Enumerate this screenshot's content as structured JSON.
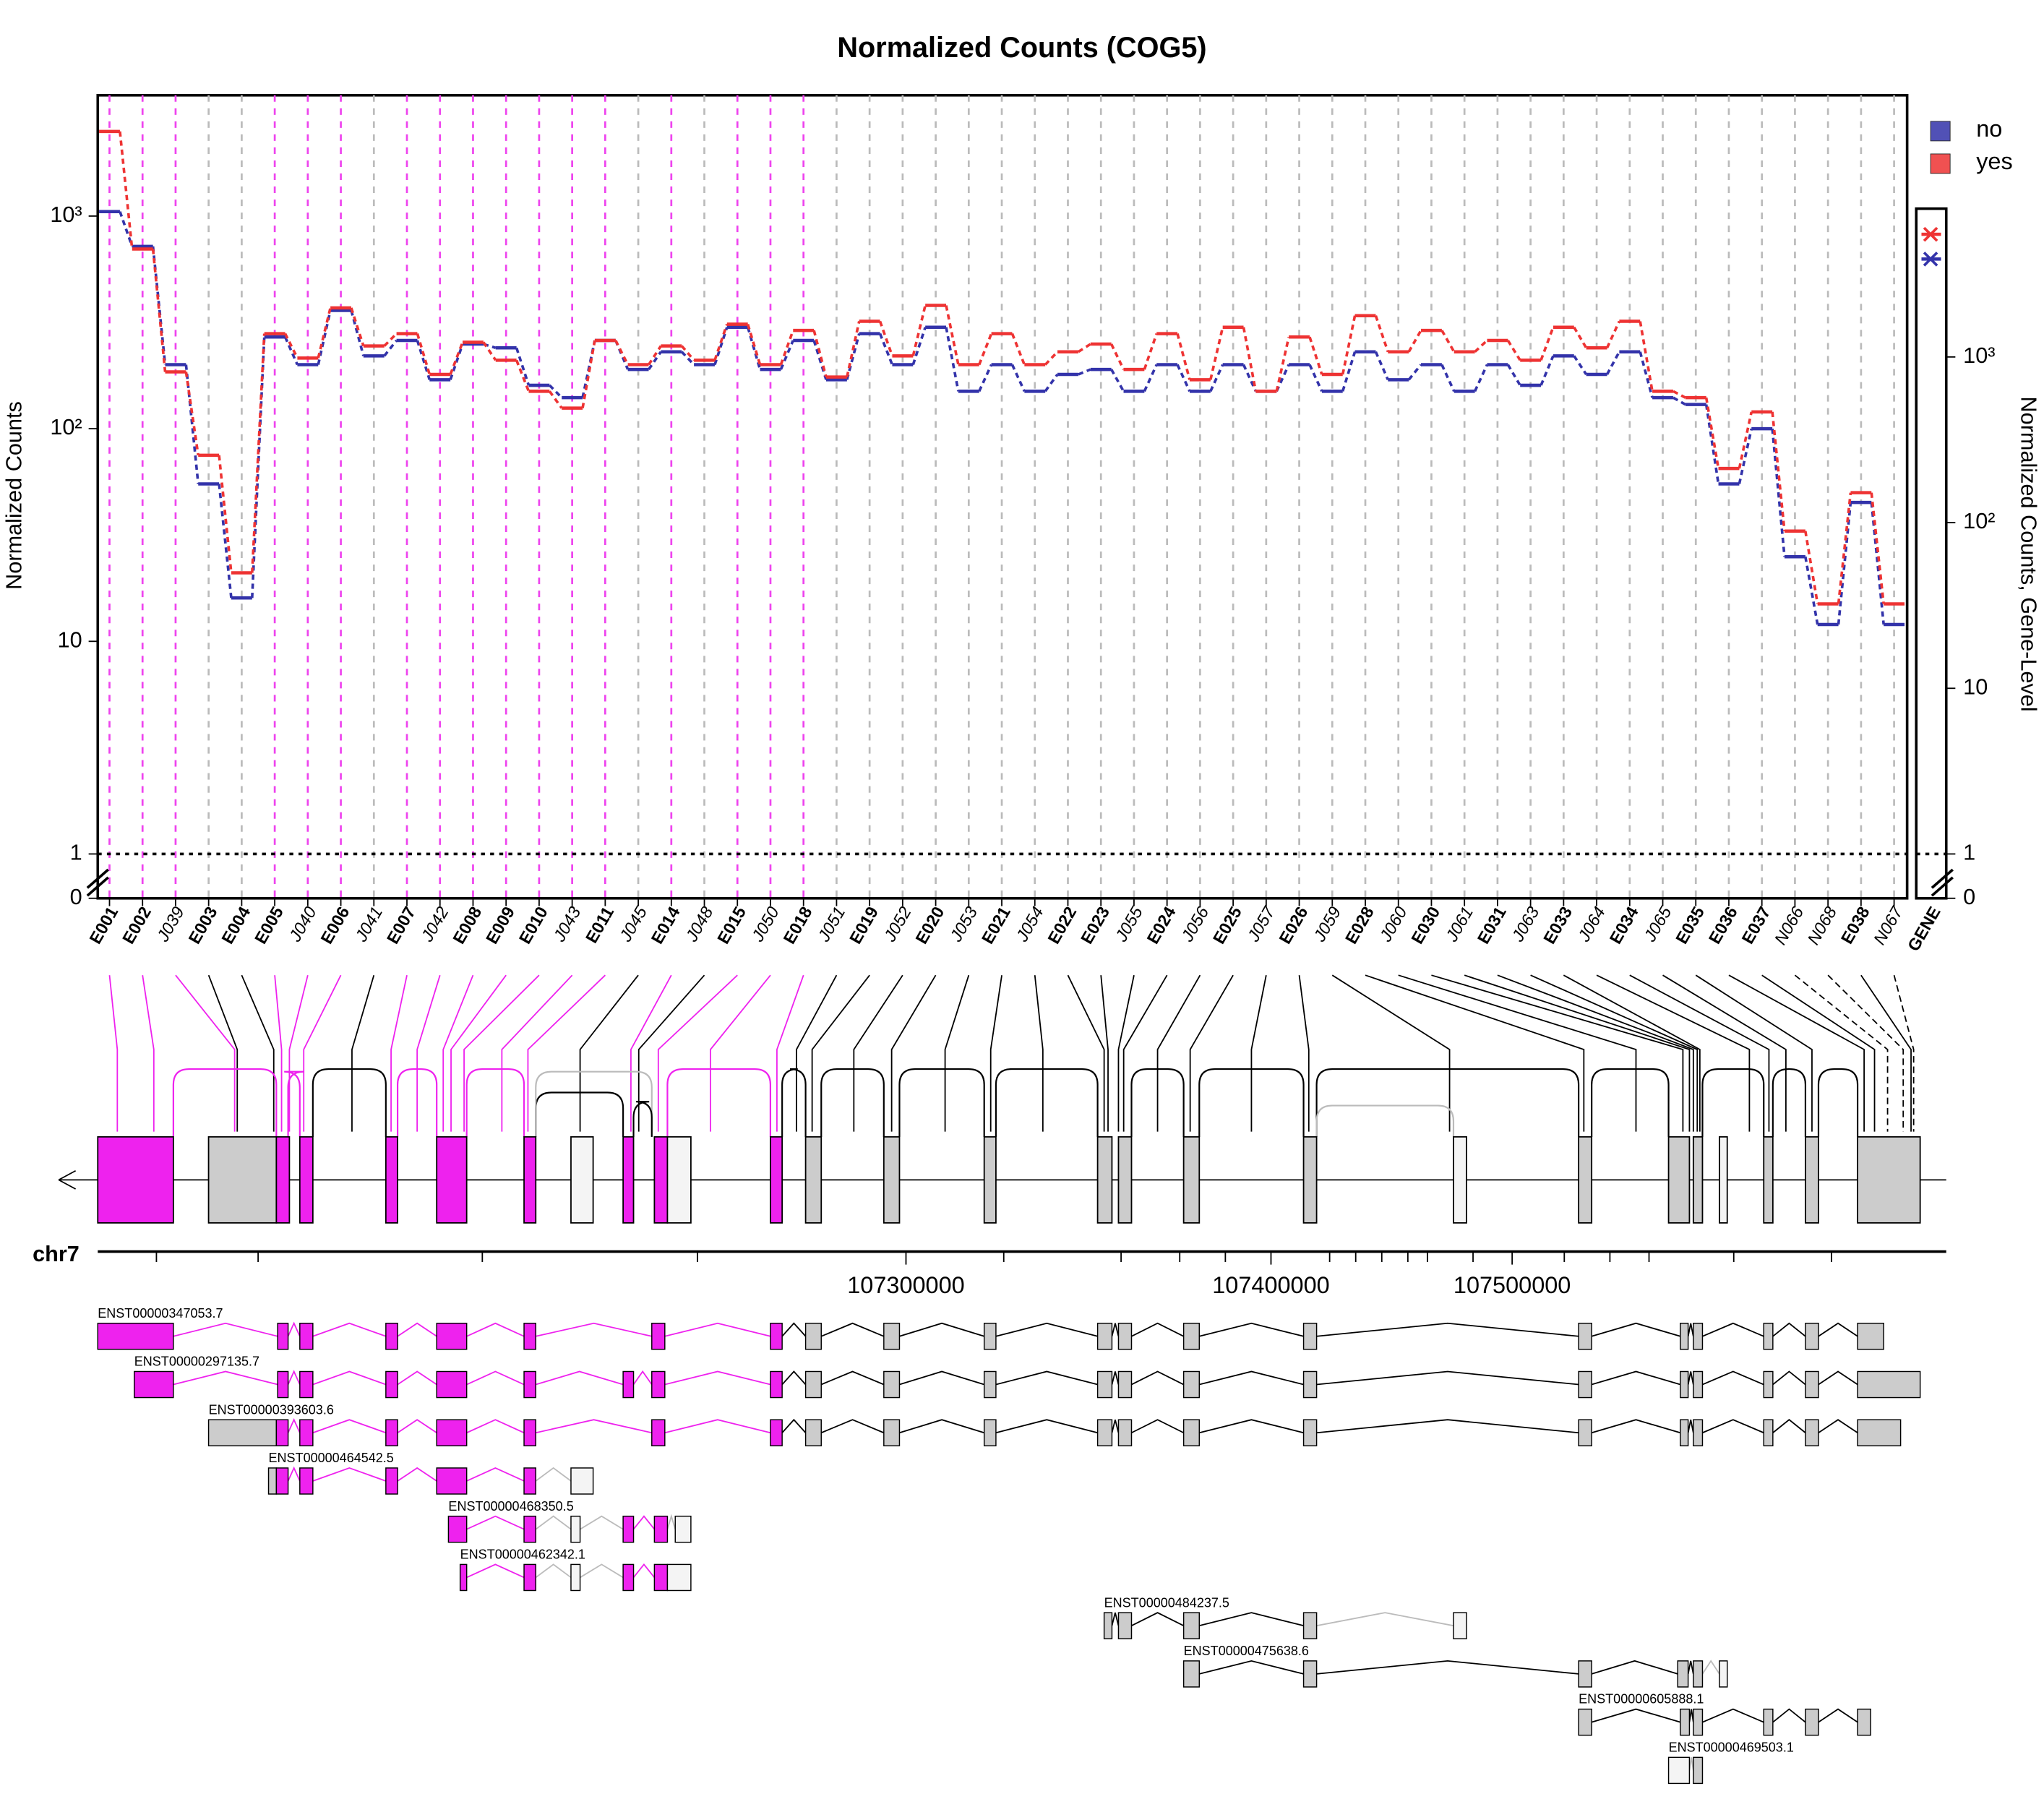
{
  "chart_data": {
    "type": "line",
    "title": "Normalized Counts (COG5)",
    "y_label": "Normalized Counts",
    "y2_label": "Normalized Counts, Gene-Level",
    "log_y": true,
    "categories": [
      "E001",
      "E002",
      "J039",
      "E003",
      "E004",
      "E005",
      "J040",
      "E006",
      "J041",
      "E007",
      "J042",
      "E008",
      "E009",
      "E010",
      "J043",
      "E011",
      "J045",
      "E014",
      "J048",
      "E015",
      "J050",
      "E018",
      "J051",
      "E019",
      "J052",
      "E020",
      "J053",
      "E021",
      "J054",
      "E022",
      "E023",
      "J055",
      "E024",
      "J056",
      "E025",
      "J057",
      "E026",
      "J059",
      "E028",
      "J060",
      "E030",
      "J061",
      "E031",
      "J063",
      "E033",
      "J064",
      "E034",
      "J065",
      "E035",
      "E036",
      "E037",
      "N066",
      "N068",
      "E038",
      "N067"
    ],
    "category_colors": [
      "#ee44ee",
      "#ee44ee",
      "#ee44ee",
      "#bbbbbb",
      "#bbbbbb",
      "#ee44ee",
      "#ee44ee",
      "#ee44ee",
      "#bbbbbb",
      "#ee44ee",
      "#ee44ee",
      "#ee44ee",
      "#ee44ee",
      "#ee44ee",
      "#ee44ee",
      "#ee44ee",
      "#bbbbbb",
      "#ee44ee",
      "#bbbbbb",
      "#ee44ee",
      "#ee44ee",
      "#ee44ee",
      "#bbbbbb",
      "#bbbbbb",
      "#bbbbbb",
      "#bbbbbb",
      "#bbbbbb",
      "#bbbbbb",
      "#bbbbbb",
      "#bbbbbb",
      "#bbbbbb",
      "#bbbbbb",
      "#bbbbbb",
      "#bbbbbb",
      "#bbbbbb",
      "#bbbbbb",
      "#bbbbbb",
      "#bbbbbb",
      "#bbbbbb",
      "#bbbbbb",
      "#bbbbbb",
      "#bbbbbb",
      "#bbbbbb",
      "#bbbbbb",
      "#bbbbbb",
      "#bbbbbb",
      "#bbbbbb",
      "#bbbbbb",
      "#bbbbbb",
      "#bbbbbb",
      "#bbbbbb",
      "#bbbbbb",
      "#bbbbbb",
      "#bbbbbb",
      "#bbbbbb"
    ],
    "gene_label": "GENE",
    "series": [
      {
        "name": "no",
        "color": "#3333aa",
        "gene_value": 3900,
        "values": [
          1050,
          720,
          200,
          55,
          16,
          270,
          200,
          360,
          220,
          260,
          170,
          250,
          240,
          160,
          140,
          260,
          190,
          230,
          200,
          300,
          190,
          260,
          170,
          280,
          200,
          300,
          150,
          200,
          150,
          180,
          190,
          150,
          200,
          150,
          200,
          150,
          200,
          150,
          230,
          170,
          200,
          150,
          200,
          160,
          220,
          180,
          230,
          140,
          130,
          55,
          100,
          25,
          12,
          45,
          12
        ]
      },
      {
        "name": "yes",
        "color": "#ee3333",
        "gene_value": 5500,
        "values": [
          2500,
          700,
          185,
          75,
          21,
          280,
          215,
          370,
          245,
          280,
          180,
          255,
          210,
          150,
          125,
          260,
          200,
          245,
          210,
          310,
          200,
          290,
          175,
          320,
          220,
          380,
          200,
          280,
          200,
          230,
          250,
          190,
          280,
          170,
          300,
          150,
          270,
          180,
          340,
          230,
          290,
          230,
          260,
          210,
          300,
          240,
          320,
          150,
          140,
          65,
          120,
          33,
          15,
          50,
          15
        ]
      }
    ],
    "ylim": [
      0,
      3700
    ],
    "yticks": [
      0,
      1,
      10,
      {
        "value": 100,
        "label": "10²"
      },
      {
        "value": 1000,
        "label": "10³"
      }
    ],
    "y2lim": [
      0,
      38000
    ],
    "y2ticks": [
      0,
      1,
      10,
      {
        "value": 100,
        "label": "10²"
      },
      {
        "value": 1000,
        "label": "10³"
      }
    ],
    "reference_line": 1,
    "legend_position": "top-right",
    "genome": {
      "chrom": "chr7",
      "ticks": [
        107300000,
        107400000,
        107500000
      ],
      "transcripts": [
        "ENST00000347053.7",
        "ENST00000297135.7",
        "ENST00000393603.6",
        "ENST00000464542.5",
        "ENST00000468350.5",
        "ENST00000462342.1",
        "ENST00000484237.5",
        "ENST00000475638.6",
        "ENST00000605888.1",
        "ENST00000469503.1"
      ]
    }
  }
}
